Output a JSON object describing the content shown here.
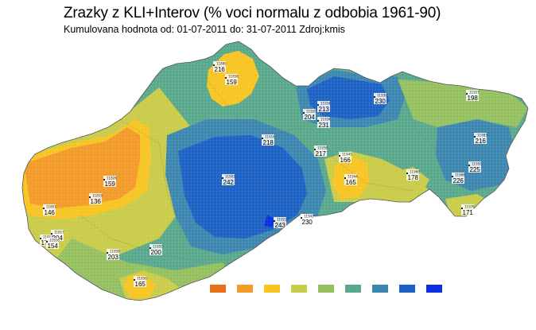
{
  "header": {
    "title": "Zrazky z KLI+Interov (% voci normalu z odbobia 1961-90)",
    "subtitle": "Kumulovana hodnota od: 01-07-2011 do: 31-07-2011 Zdroj:kmis"
  },
  "legend": {
    "colors": [
      "#e8701c",
      "#f29a2a",
      "#f8c422",
      "#c8cc48",
      "#96c060",
      "#5aa88c",
      "#3c86b0",
      "#1c62c4",
      "#0a2ee0"
    ]
  },
  "stations": [
    {
      "id": "11880",
      "value": "216"
    },
    {
      "id": "11858",
      "value": "159"
    },
    {
      "id": "11930",
      "value": "230"
    },
    {
      "id": "11927",
      "value": "198"
    },
    {
      "id": "11934",
      "value": "213"
    },
    {
      "id": "11920",
      "value": "204"
    },
    {
      "id": "11934",
      "value": "231"
    },
    {
      "id": "11916",
      "value": "218"
    },
    {
      "id": "11958",
      "value": "217"
    },
    {
      "id": "11983",
      "value": "216"
    },
    {
      "id": "11945",
      "value": "166"
    },
    {
      "id": "11826",
      "value": "159"
    },
    {
      "id": "11903",
      "value": "242"
    },
    {
      "id": "11944",
      "value": "165"
    },
    {
      "id": "11966",
      "value": "178"
    },
    {
      "id": "11950",
      "value": "225"
    },
    {
      "id": "11968",
      "value": "226"
    },
    {
      "id": "11819",
      "value": "136"
    },
    {
      "id": "11801",
      "value": "146"
    },
    {
      "id": "11922",
      "value": "243"
    },
    {
      "id": "11942",
      "value": "230"
    },
    {
      "id": "11978",
      "value": "171"
    },
    {
      "id": "11817",
      "value": "204"
    },
    {
      "id": "11813",
      "value": "172"
    },
    {
      "id": "11816",
      "value": "154"
    },
    {
      "id": "11858",
      "value": "203"
    },
    {
      "id": "11850",
      "value": "200"
    },
    {
      "id": "11856",
      "value": "165"
    }
  ]
}
